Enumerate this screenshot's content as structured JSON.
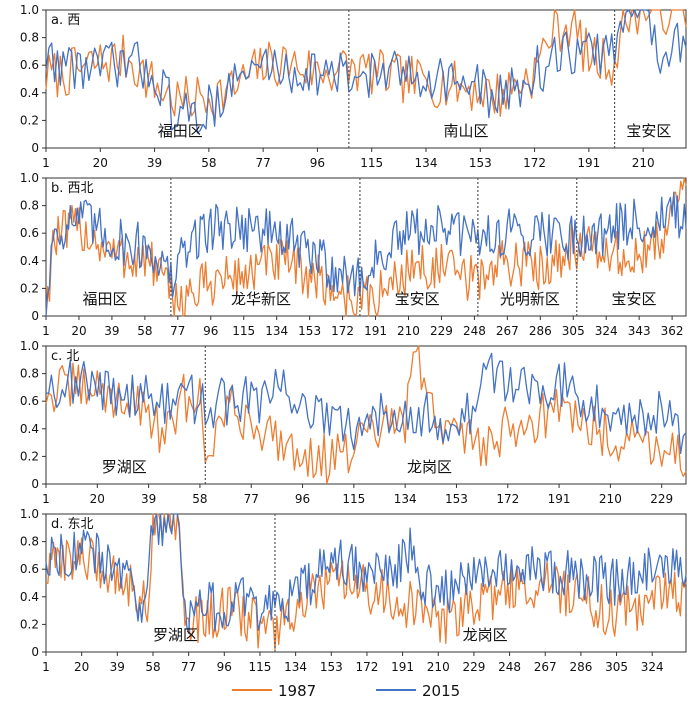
{
  "chart_data": [
    {
      "type": "line",
      "title": "a. 西",
      "ylim": [
        0,
        1.0
      ],
      "yticks": [
        "0",
        "0.2",
        "0.4",
        "0.6",
        "0.8",
        "1.0"
      ],
      "xticks": [
        1,
        20,
        39,
        58,
        77,
        96,
        115,
        134,
        153,
        172,
        191,
        210
      ],
      "x_count": 225,
      "dividers": [
        107,
        200
      ],
      "regions": [
        {
          "label": "福田区",
          "x": 48
        },
        {
          "label": "南山区",
          "x": 148
        },
        {
          "label": "宝安区",
          "x": 212
        }
      ],
      "series": [
        {
          "name": "1987",
          "color": "#ED7D31",
          "anchors": [
            [
              1,
              0.52
            ],
            [
              10,
              0.55
            ],
            [
              20,
              0.62
            ],
            [
              30,
              0.65
            ],
            [
              39,
              0.45
            ],
            [
              48,
              0.33
            ],
            [
              58,
              0.38
            ],
            [
              66,
              0.42
            ],
            [
              77,
              0.6
            ],
            [
              86,
              0.62
            ],
            [
              96,
              0.55
            ],
            [
              107,
              0.58
            ],
            [
              115,
              0.55
            ],
            [
              125,
              0.5
            ],
            [
              134,
              0.48
            ],
            [
              145,
              0.45
            ],
            [
              153,
              0.42
            ],
            [
              160,
              0.38
            ],
            [
              172,
              0.55
            ],
            [
              178,
              0.85
            ],
            [
              185,
              0.9
            ],
            [
              191,
              0.65
            ],
            [
              200,
              0.62
            ],
            [
              205,
              1.0
            ],
            [
              225,
              1.0
            ]
          ]
        },
        {
          "name": "2015",
          "color": "#4472C4",
          "anchors": [
            [
              1,
              0.65
            ],
            [
              10,
              0.6
            ],
            [
              20,
              0.58
            ],
            [
              30,
              0.62
            ],
            [
              39,
              0.55
            ],
            [
              45,
              0.3
            ],
            [
              52,
              0.2
            ],
            [
              58,
              0.3
            ],
            [
              66,
              0.45
            ],
            [
              77,
              0.62
            ],
            [
              86,
              0.55
            ],
            [
              96,
              0.55
            ],
            [
              107,
              0.5
            ],
            [
              115,
              0.55
            ],
            [
              125,
              0.52
            ],
            [
              134,
              0.55
            ],
            [
              145,
              0.48
            ],
            [
              153,
              0.42
            ],
            [
              160,
              0.35
            ],
            [
              172,
              0.55
            ],
            [
              185,
              0.7
            ],
            [
              191,
              0.68
            ],
            [
              200,
              0.72
            ],
            [
              205,
              1.0
            ],
            [
              212,
              1.0
            ],
            [
              215,
              0.7
            ],
            [
              225,
              0.8
            ]
          ]
        }
      ]
    },
    {
      "type": "line",
      "title": "b. 西北",
      "ylim": [
        0,
        1.0
      ],
      "yticks": [
        "0",
        "0.2",
        "0.4",
        "0.6",
        "0.8",
        "1.0"
      ],
      "xticks": [
        1,
        20,
        39,
        58,
        77,
        96,
        115,
        134,
        153,
        172,
        191,
        210,
        229,
        248,
        267,
        286,
        305,
        324,
        343,
        362
      ],
      "x_count": 370,
      "dividers": [
        73,
        182,
        250,
        307
      ],
      "regions": [
        {
          "label": "福田区",
          "x": 35
        },
        {
          "label": "龙华新区",
          "x": 125
        },
        {
          "label": "宝安区",
          "x": 215
        },
        {
          "label": "光明新区",
          "x": 280
        },
        {
          "label": "宝安区",
          "x": 340
        }
      ],
      "series": [
        {
          "name": "1987",
          "color": "#ED7D31",
          "anchors": [
            [
              1,
              0.0
            ],
            [
              5,
              0.55
            ],
            [
              20,
              0.65
            ],
            [
              39,
              0.45
            ],
            [
              58,
              0.4
            ],
            [
              65,
              0.35
            ],
            [
              73,
              0.12
            ],
            [
              85,
              0.15
            ],
            [
              96,
              0.25
            ],
            [
              115,
              0.3
            ],
            [
              134,
              0.4
            ],
            [
              153,
              0.3
            ],
            [
              160,
              0.25
            ],
            [
              172,
              0.15
            ],
            [
              182,
              0.12
            ],
            [
              191,
              0.12
            ],
            [
              210,
              0.35
            ],
            [
              229,
              0.35
            ],
            [
              248,
              0.25
            ],
            [
              250,
              0.28
            ],
            [
              267,
              0.4
            ],
            [
              286,
              0.35
            ],
            [
              305,
              0.52
            ],
            [
              324,
              0.45
            ],
            [
              343,
              0.4
            ],
            [
              355,
              0.55
            ],
            [
              362,
              0.8
            ],
            [
              370,
              0.95
            ]
          ]
        },
        {
          "name": "2015",
          "color": "#4472C4",
          "anchors": [
            [
              1,
              0.0
            ],
            [
              5,
              0.6
            ],
            [
              20,
              0.72
            ],
            [
              39,
              0.55
            ],
            [
              58,
              0.5
            ],
            [
              65,
              0.45
            ],
            [
              73,
              0.25
            ],
            [
              85,
              0.55
            ],
            [
              96,
              0.65
            ],
            [
              115,
              0.65
            ],
            [
              134,
              0.6
            ],
            [
              153,
              0.45
            ],
            [
              160,
              0.4
            ],
            [
              172,
              0.3
            ],
            [
              182,
              0.25
            ],
            [
              191,
              0.4
            ],
            [
              210,
              0.6
            ],
            [
              229,
              0.65
            ],
            [
              248,
              0.55
            ],
            [
              250,
              0.58
            ],
            [
              267,
              0.6
            ],
            [
              286,
              0.62
            ],
            [
              305,
              0.58
            ],
            [
              324,
              0.62
            ],
            [
              343,
              0.68
            ],
            [
              355,
              0.7
            ],
            [
              362,
              0.75
            ],
            [
              370,
              0.65
            ]
          ]
        }
      ]
    },
    {
      "type": "line",
      "title": "c. 北",
      "ylim": [
        0,
        1.0
      ],
      "yticks": [
        "0",
        "0.2",
        "0.4",
        "0.6",
        "0.8",
        "1.0"
      ],
      "xticks": [
        1,
        20,
        39,
        58,
        77,
        96,
        115,
        134,
        153,
        172,
        191,
        210,
        229
      ],
      "x_count": 238,
      "dividers": [
        60
      ],
      "regions": [
        {
          "label": "罗湖区",
          "x": 30
        },
        {
          "label": "龙岗区",
          "x": 143
        }
      ],
      "series": [
        {
          "name": "1987",
          "color": "#ED7D31",
          "anchors": [
            [
              1,
              0.65
            ],
            [
              10,
              0.7
            ],
            [
              20,
              0.68
            ],
            [
              39,
              0.55
            ],
            [
              45,
              0.3
            ],
            [
              52,
              0.62
            ],
            [
              58,
              0.6
            ],
            [
              60,
              0.28
            ],
            [
              70,
              0.55
            ],
            [
              77,
              0.45
            ],
            [
              90,
              0.3
            ],
            [
              96,
              0.22
            ],
            [
              105,
              0.18
            ],
            [
              115,
              0.25
            ],
            [
              125,
              0.4
            ],
            [
              134,
              0.45
            ],
            [
              138,
              0.95
            ],
            [
              143,
              0.55
            ],
            [
              153,
              0.35
            ],
            [
              165,
              0.3
            ],
            [
              172,
              0.4
            ],
            [
              191,
              0.55
            ],
            [
              210,
              0.35
            ],
            [
              229,
              0.3
            ],
            [
              238,
              0.18
            ]
          ]
        },
        {
          "name": "2015",
          "color": "#4472C4",
          "anchors": [
            [
              1,
              0.72
            ],
            [
              10,
              0.75
            ],
            [
              20,
              0.68
            ],
            [
              39,
              0.65
            ],
            [
              45,
              0.55
            ],
            [
              52,
              0.65
            ],
            [
              58,
              0.6
            ],
            [
              60,
              0.55
            ],
            [
              70,
              0.62
            ],
            [
              77,
              0.6
            ],
            [
              90,
              0.68
            ],
            [
              96,
              0.6
            ],
            [
              105,
              0.45
            ],
            [
              115,
              0.35
            ],
            [
              125,
              0.55
            ],
            [
              134,
              0.55
            ],
            [
              143,
              0.5
            ],
            [
              153,
              0.4
            ],
            [
              160,
              0.55
            ],
            [
              165,
              0.85
            ],
            [
              172,
              0.75
            ],
            [
              191,
              0.72
            ],
            [
              210,
              0.55
            ],
            [
              229,
              0.5
            ],
            [
              238,
              0.35
            ]
          ]
        }
      ]
    },
    {
      "type": "line",
      "title": "d. 东北",
      "ylim": [
        0,
        1.0
      ],
      "yticks": [
        "0",
        "0.2",
        "0.4",
        "0.6",
        "0.8",
        "1.0"
      ],
      "xticks": [
        1,
        20,
        39,
        58,
        77,
        96,
        115,
        134,
        153,
        172,
        191,
        210,
        229,
        248,
        267,
        286,
        305,
        324
      ],
      "x_count": 342,
      "dividers": [
        123
      ],
      "regions": [
        {
          "label": "罗湖区",
          "x": 70
        },
        {
          "label": "龙岗区",
          "x": 235
        }
      ],
      "series": [
        {
          "name": "1987",
          "color": "#ED7D31",
          "anchors": [
            [
              1,
              0.55
            ],
            [
              10,
              0.7
            ],
            [
              20,
              0.68
            ],
            [
              39,
              0.55
            ],
            [
              50,
              0.45
            ],
            [
              55,
              0.3
            ],
            [
              58,
              1.0
            ],
            [
              72,
              0.98
            ],
            [
              75,
              0.2
            ],
            [
              85,
              0.25
            ],
            [
              96,
              0.3
            ],
            [
              110,
              0.25
            ],
            [
              115,
              0.2
            ],
            [
              123,
              0.15
            ],
            [
              134,
              0.3
            ],
            [
              153,
              0.5
            ],
            [
              172,
              0.45
            ],
            [
              185,
              0.4
            ],
            [
              200,
              0.3
            ],
            [
              210,
              0.2
            ],
            [
              229,
              0.35
            ],
            [
              248,
              0.45
            ],
            [
              267,
              0.5
            ],
            [
              286,
              0.4
            ],
            [
              305,
              0.25
            ],
            [
              324,
              0.4
            ],
            [
              342,
              0.45
            ]
          ]
        },
        {
          "name": "2015",
          "color": "#4472C4",
          "anchors": [
            [
              1,
              0.7
            ],
            [
              10,
              0.72
            ],
            [
              20,
              0.75
            ],
            [
              39,
              0.6
            ],
            [
              50,
              0.4
            ],
            [
              55,
              0.35
            ],
            [
              58,
              0.95
            ],
            [
              72,
              0.95
            ],
            [
              75,
              0.3
            ],
            [
              85,
              0.35
            ],
            [
              96,
              0.3
            ],
            [
              110,
              0.4
            ],
            [
              115,
              0.25
            ],
            [
              123,
              0.4
            ],
            [
              134,
              0.4
            ],
            [
              153,
              0.65
            ],
            [
              172,
              0.6
            ],
            [
              185,
              0.55
            ],
            [
              195,
              0.75
            ],
            [
              200,
              0.5
            ],
            [
              210,
              0.4
            ],
            [
              229,
              0.6
            ],
            [
              248,
              0.65
            ],
            [
              267,
              0.6
            ],
            [
              286,
              0.55
            ],
            [
              305,
              0.5
            ],
            [
              324,
              0.6
            ],
            [
              342,
              0.55
            ]
          ]
        }
      ]
    }
  ],
  "legend": [
    {
      "label": "1987",
      "color": "#ED7D31"
    },
    {
      "label": "2015",
      "color": "#4472C4"
    }
  ]
}
